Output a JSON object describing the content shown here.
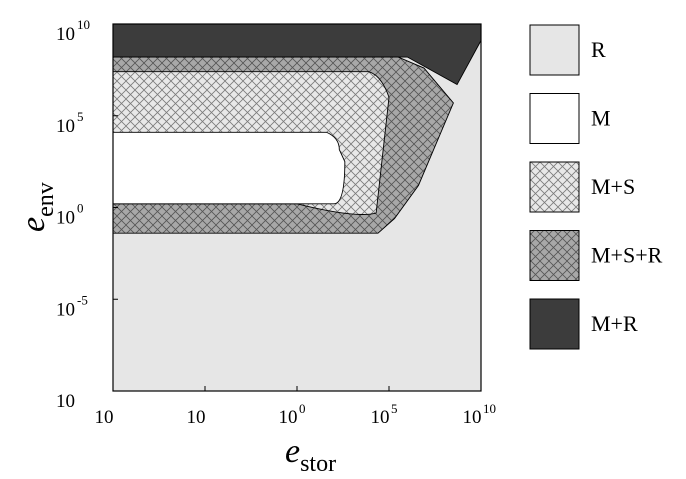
{
  "chart_data": {
    "type": "area",
    "title": "",
    "xlabel": {
      "main": "e",
      "sub": "stor"
    },
    "ylabel": {
      "main": "e",
      "sub": "env"
    },
    "x_scale": "log",
    "y_scale": "log",
    "xlim": [
      1e-10,
      10000000000.0
    ],
    "ylim": [
      1e-10,
      10000000000.0
    ],
    "x_ticks": [
      {
        "base": "10",
        "exp": ""
      },
      {
        "base": "10",
        "exp": ""
      },
      {
        "base": "10",
        "exp": "0"
      },
      {
        "base": "10",
        "exp": "5"
      },
      {
        "base": "10",
        "exp": "10"
      }
    ],
    "y_ticks": [
      {
        "base": "10",
        "exp": "10"
      },
      {
        "base": "10",
        "exp": "5"
      },
      {
        "base": "10",
        "exp": "0"
      },
      {
        "base": "10",
        "exp": "-5"
      },
      {
        "base": "10",
        "exp": ""
      }
    ],
    "grid": false,
    "legend_position": "right",
    "regions": [
      {
        "name": "R",
        "color": "#e6e6e6",
        "pattern": "none"
      },
      {
        "name": "M",
        "color": "#ffffff",
        "pattern": "none"
      },
      {
        "name": "M+S",
        "color": "#e8e8e8",
        "pattern": "crosshatch"
      },
      {
        "name": "M+S+R",
        "color": "#a8a8a8",
        "pattern": "crosshatch"
      },
      {
        "name": "M+R",
        "color": "#3c3c3c",
        "pattern": "none"
      }
    ],
    "boundaries": [
      {
        "region": "M+R",
        "points": [
          [
            -10,
            10
          ],
          [
            10,
            10
          ],
          [
            10,
            9.1
          ],
          [
            8.7,
            6.7
          ],
          [
            6,
            8.2
          ],
          [
            -10,
            8.2
          ]
        ]
      },
      {
        "region": "M+S+R",
        "points": [
          [
            -10,
            8.2
          ],
          [
            5.5,
            8.2
          ],
          [
            6.9,
            7.6
          ],
          [
            8.5,
            5.7
          ],
          [
            6.6,
            1.2
          ],
          [
            5.3,
            -0.6
          ],
          [
            4.4,
            -1.4
          ],
          [
            -10,
            -1.4
          ]
        ]
      },
      {
        "region": "M+S",
        "points": [
          [
            -10,
            7.4
          ],
          [
            3.9,
            7.4
          ],
          [
            4.6,
            7.2
          ],
          [
            5.0,
            6.0
          ],
          [
            4.3,
            -0.3
          ],
          [
            3.2,
            -0.6
          ],
          [
            0,
            0.2
          ],
          [
            -10,
            0.2
          ]
        ]
      },
      {
        "region": "M",
        "points": [
          [
            -10,
            4.1
          ],
          [
            1.6,
            4.1
          ],
          [
            2.3,
            3.8
          ],
          [
            2.6,
            2.5
          ],
          [
            2.0,
            0.2
          ],
          [
            -10,
            0.2
          ]
        ]
      }
    ]
  }
}
